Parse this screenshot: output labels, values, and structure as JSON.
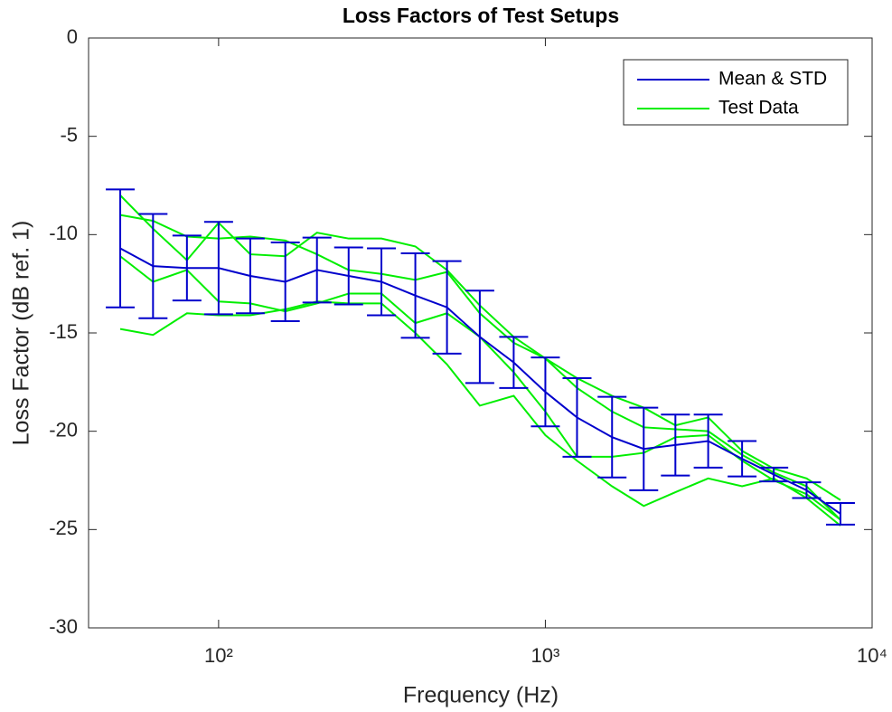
{
  "chart_data": {
    "type": "errorbar-line",
    "title": "Loss Factors of Test Setups",
    "xlabel": "Frequency (Hz)",
    "ylabel": "Loss Factor (dB ref. 1)",
    "xscale": "log",
    "x": [
      50,
      63,
      80,
      100,
      125,
      160,
      200,
      250,
      315,
      400,
      500,
      630,
      800,
      1000,
      1250,
      1600,
      2000,
      2500,
      3150,
      4000,
      5000,
      6300,
      8000
    ],
    "series": [
      {
        "name": "Mean & STD",
        "color": "#0000cc",
        "values": [
          -10.7,
          -11.6,
          -11.7,
          -11.7,
          -12.1,
          -12.4,
          -11.8,
          -12.1,
          -12.4,
          -13.1,
          -13.7,
          -15.2,
          -16.5,
          -18,
          -19.3,
          -20.3,
          -20.9,
          -20.7,
          -20.5,
          -21.4,
          -22.2,
          -23,
          -24.2
        ],
        "errors": [
          3.0,
          2.65,
          1.65,
          2.35,
          1.9,
          2.0,
          1.65,
          1.45,
          1.7,
          2.15,
          2.35,
          2.35,
          1.3,
          1.75,
          2.0,
          2.05,
          2.1,
          1.55,
          1.35,
          0.9,
          0.35,
          0.4,
          0.55
        ]
      },
      {
        "name": "Test Data",
        "color": "#00ee00",
        "lines": [
          [
            -8,
            -9.7,
            -11.3,
            -9.4,
            -11,
            -11.1,
            -9.9,
            -10.2,
            -10.2,
            -10.6,
            -11.8,
            -13.6,
            -15.2,
            -16.3,
            -17.3,
            -18.2,
            -18.8,
            -19.7,
            -19.3,
            -21,
            -21.9,
            -22.4,
            -23.5
          ],
          [
            -9,
            -9.3,
            -10.1,
            -10.2,
            -10.1,
            -10.3,
            -11,
            -11.8,
            -12,
            -12.3,
            -11.9,
            -14,
            -15.5,
            -16.3,
            -17.8,
            -19,
            -19.8,
            -19.9,
            -20,
            -21.2,
            -22.1,
            -22.8,
            -24.5
          ],
          [
            -11.1,
            -12.4,
            -11.8,
            -13.4,
            -13.5,
            -13.9,
            -13.5,
            -13,
            -13,
            -14.5,
            -14,
            -15.2,
            -17,
            -19,
            -21.3,
            -21.3,
            -21.1,
            -20.3,
            -20.2,
            -21.5,
            -22.5,
            -23.2,
            -24.5
          ],
          [
            -14.8,
            -15.1,
            -14,
            -14.1,
            -14.1,
            -13.8,
            -13.4,
            -13.5,
            -13.5,
            -15,
            -16.6,
            -18.7,
            -18.2,
            -20.2,
            -21.5,
            -22.8,
            -23.8,
            -23.1,
            -22.4,
            -22.8,
            -22.4,
            -23.4,
            -24.8
          ]
        ]
      }
    ],
    "xlim": [
      40,
      10000
    ],
    "xticks": [
      {
        "value": 100,
        "label": "10²"
      },
      {
        "value": 1000,
        "label": "10³"
      },
      {
        "value": 10000,
        "label": "10⁴"
      }
    ],
    "ylim": [
      -30,
      0
    ],
    "yticks": [
      0,
      -5,
      -10,
      -15,
      -20,
      -25,
      -30
    ],
    "grid": false,
    "legend": "northeast"
  }
}
